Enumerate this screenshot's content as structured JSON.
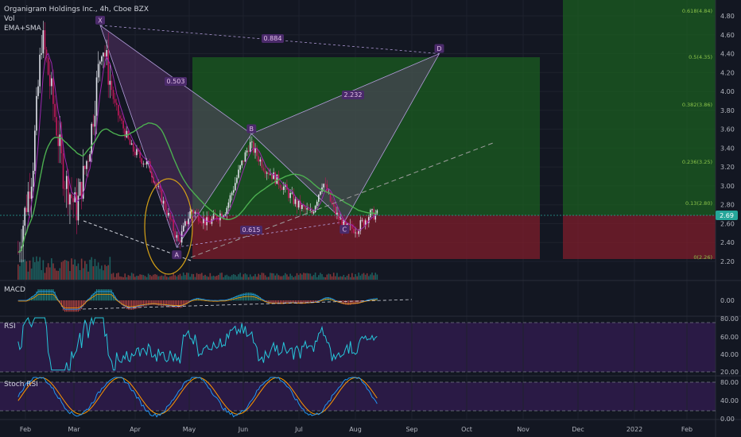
{
  "header": {
    "symbol_line": "Organigram Holdings Inc., 4h, Cboe BZX",
    "vol_label": "Vol",
    "ema_label": "EMA+SMA"
  },
  "colors": {
    "background": "#131722",
    "up": "#26a69a",
    "down": "#ef5350",
    "candle_up": "#e0e3eb",
    "candle_down": "#c2185b",
    "pattern_fill": "#7b3f8c",
    "target_zone": "#1b5e20",
    "stop_zone": "#7f1d2b",
    "ema": "#9c27b0",
    "sma": "#4caf50",
    "rsi": "#26c6da",
    "stoch_k": "#2196f3",
    "stoch_d": "#ff9800",
    "price_badge": "#26a69a"
  },
  "price_axis": {
    "ticks": [
      "4.80",
      "4.60",
      "4.40",
      "4.20",
      "4.00",
      "3.80",
      "3.60",
      "3.40",
      "3.20",
      "3.00",
      "2.80",
      "2.60",
      "2.40",
      "2.20"
    ],
    "current_price": "2.69"
  },
  "fib_labels": [
    "0.618(4.84)",
    "0.5(4.35)",
    "0.382(3.86)",
    "0.236(3.25)",
    "0.13(2.80)",
    "0(2.26)"
  ],
  "pattern": {
    "points": [
      "X",
      "A",
      "B",
      "C",
      "D"
    ],
    "ratios": [
      "0.884",
      "0.503",
      "2.232",
      "0.615"
    ]
  },
  "x_axis": {
    "labels": [
      "Feb",
      "Mar",
      "Apr",
      "May",
      "Jun",
      "Jul",
      "Aug",
      "Sep",
      "Oct",
      "Nov",
      "Dec",
      "2022",
      "Feb"
    ]
  },
  "macd": {
    "label": "MACD",
    "ticks": [
      "0.00"
    ]
  },
  "rsi": {
    "label": "RSI",
    "ticks": [
      "80.00",
      "60.00",
      "40.00",
      "20.00"
    ]
  },
  "stoch": {
    "label": "Stoch RSI",
    "ticks": [
      "80.00",
      "40.00",
      "0.00"
    ]
  },
  "chart_data": {
    "type": "candlestick",
    "title": "Organigram Holdings Inc., 4h, Cboe BZX",
    "ylim": [
      2.1,
      4.95
    ],
    "price_path": [
      {
        "date": "2021-01-28",
        "price": 2.3
      },
      {
        "date": "2021-02-05",
        "price": 3.2
      },
      {
        "date": "2021-02-10",
        "price": 4.6
      },
      {
        "date": "2021-02-16",
        "price": 3.9
      },
      {
        "date": "2021-02-22",
        "price": 3.1
      },
      {
        "date": "2021-03-01",
        "price": 2.75
      },
      {
        "date": "2021-03-08",
        "price": 3.4
      },
      {
        "date": "2021-03-15",
        "price": 4.55
      },
      {
        "date": "2021-03-22",
        "price": 3.85
      },
      {
        "date": "2021-03-31",
        "price": 3.4
      },
      {
        "date": "2021-04-10",
        "price": 3.2
      },
      {
        "date": "2021-04-20",
        "price": 2.7
      },
      {
        "date": "2021-04-26",
        "price": 2.4
      },
      {
        "date": "2021-05-03",
        "price": 2.75
      },
      {
        "date": "2021-05-12",
        "price": 2.6
      },
      {
        "date": "2021-05-22",
        "price": 2.75
      },
      {
        "date": "2021-05-30",
        "price": 3.2
      },
      {
        "date": "2021-06-04",
        "price": 3.45
      },
      {
        "date": "2021-06-12",
        "price": 3.2
      },
      {
        "date": "2021-06-22",
        "price": 3.0
      },
      {
        "date": "2021-06-30",
        "price": 2.8
      },
      {
        "date": "2021-07-08",
        "price": 2.7
      },
      {
        "date": "2021-07-14",
        "price": 3.05
      },
      {
        "date": "2021-07-20",
        "price": 2.75
      },
      {
        "date": "2021-07-26",
        "price": 2.55
      },
      {
        "date": "2021-08-02",
        "price": 2.55
      },
      {
        "date": "2021-08-09",
        "price": 2.7
      },
      {
        "date": "2021-08-13",
        "price": 2.69
      }
    ],
    "pattern_points": [
      {
        "label": "X",
        "date": "2021-03-14",
        "price": 4.7
      },
      {
        "label": "A",
        "date": "2021-04-25",
        "price": 2.35
      },
      {
        "label": "B",
        "date": "2021-06-05",
        "price": 3.55
      },
      {
        "label": "C",
        "date": "2021-07-26",
        "price": 2.62
      },
      {
        "label": "D",
        "date": "2021-09-16",
        "price": 4.4
      }
    ],
    "target_box": {
      "top": 4.35,
      "bottom": 2.69
    },
    "stop_box": {
      "top": 2.69,
      "bottom": 2.26
    }
  }
}
